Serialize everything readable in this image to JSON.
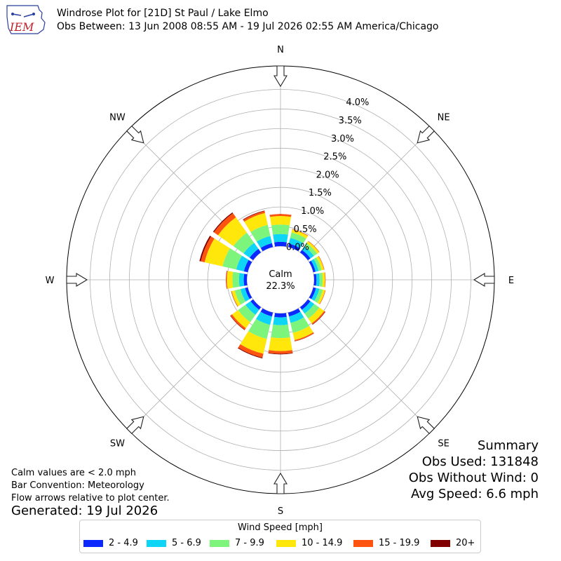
{
  "header": {
    "logo_text": "IEM",
    "title": "Windrose Plot for [21D] St Paul / Lake Elmo",
    "subtitle": "Obs Between: 13 Jun 2008 08:55 AM - 19 Jul 2026 02:55 AM America/Chicago"
  },
  "notes": {
    "calm_note": "Calm values are < 2.0 mph",
    "convention": "Bar Convention: Meteorology",
    "flow": "Flow arrows relative to plot center.",
    "generated": "Generated: 19 Jul 2026"
  },
  "summary": {
    "title": "Summary",
    "obs_used": "Obs Used: 131848",
    "obs_without_wind": "Obs Without Wind: 0",
    "avg_speed": "Avg Speed: 6.6 mph"
  },
  "calm": {
    "label": "Calm",
    "value": "22.3%"
  },
  "colors": [
    "#0a28ff",
    "#0ed4f6",
    "#7df57c",
    "#ffe60b",
    "#ff5410",
    "#800000"
  ],
  "chart_data": {
    "type": "windrose",
    "directions": [
      "N",
      "NNE",
      "NE",
      "ENE",
      "E",
      "ESE",
      "SE",
      "SSE",
      "S",
      "SSW",
      "SW",
      "WSW",
      "W",
      "WNW",
      "NW",
      "NNW"
    ],
    "compass_labels": [
      "N",
      "NE",
      "E",
      "SE",
      "S",
      "SW",
      "W",
      "NW"
    ],
    "radial_ticks": [
      "0.0%",
      "0.5%",
      "1.0%",
      "1.5%",
      "2.0%",
      "2.5%",
      "3.0%",
      "3.5%",
      "4.0%"
    ],
    "rlim": [
      0,
      4.6
    ],
    "legend_title": "Wind Speed [mph]",
    "bins": [
      "2 - 4.9",
      "5 - 6.9",
      "7 - 9.9",
      "10 - 14.9",
      "15 - 19.9",
      "20+"
    ],
    "sector_values": [
      [
        0.11,
        0.2,
        0.24,
        0.22,
        0.05,
        0.002
      ],
      [
        0.09,
        0.15,
        0.14,
        0.08,
        0.01,
        0.002
      ],
      [
        0.08,
        0.11,
        0.1,
        0.06,
        0.01,
        0.002
      ],
      [
        0.06,
        0.08,
        0.08,
        0.06,
        0.01,
        0.002
      ],
      [
        0.06,
        0.08,
        0.08,
        0.06,
        0.01,
        0.002
      ],
      [
        0.07,
        0.09,
        0.09,
        0.06,
        0.01,
        0.002
      ],
      [
        0.08,
        0.12,
        0.16,
        0.15,
        0.03,
        0.01
      ],
      [
        0.1,
        0.17,
        0.26,
        0.19,
        0.03,
        0.005
      ],
      [
        0.1,
        0.2,
        0.33,
        0.33,
        0.07,
        0.015
      ],
      [
        0.1,
        0.22,
        0.37,
        0.39,
        0.1,
        0.02
      ],
      [
        0.08,
        0.16,
        0.23,
        0.19,
        0.05,
        0.01
      ],
      [
        0.07,
        0.12,
        0.15,
        0.08,
        0.01,
        0.005
      ],
      [
        0.08,
        0.12,
        0.17,
        0.14,
        0.02,
        0.005
      ],
      [
        0.1,
        0.2,
        0.36,
        0.47,
        0.1,
        0.035
      ],
      [
        0.11,
        0.19,
        0.32,
        0.48,
        0.13,
        0.025
      ],
      [
        0.1,
        0.19,
        0.29,
        0.31,
        0.05,
        0.015
      ]
    ]
  }
}
